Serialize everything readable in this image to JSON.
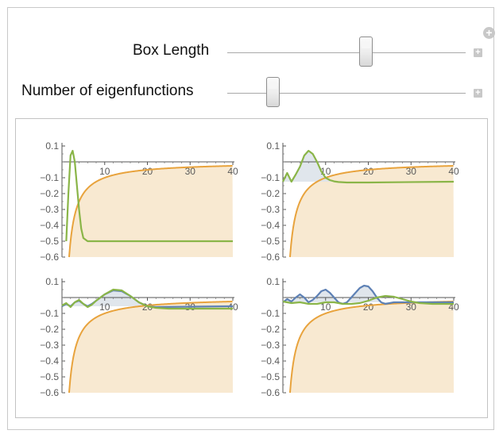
{
  "controls": {
    "box_length": {
      "label": "Box Length",
      "position": 0.58
    },
    "num_eigenfunctions": {
      "label": "Number of eigenfunctions",
      "position": 0.19
    }
  },
  "icons": {
    "add_panel": "plus-circle-icon",
    "expand": "plus-square-icon"
  },
  "colors": {
    "potential": "#e8a33d",
    "potential_fill": "#f8e9d1",
    "eigen_green": "#8ab548",
    "eigen_blue": "#5e81b5",
    "eigen_fill": "#dde3ea"
  },
  "chart_data": [
    {
      "type": "line",
      "title": "",
      "xlabel": "",
      "ylabel": "",
      "xlim": [
        0,
        40
      ],
      "ylim": [
        -0.6,
        0.1
      ],
      "xticks": [
        10,
        20,
        30,
        40
      ],
      "xtick_labels": [
        "10",
        "20",
        "30",
        "40"
      ],
      "yticks": [
        0.1,
        -0.1,
        -0.2,
        -0.3,
        -0.4,
        -0.5,
        -0.6
      ],
      "ytick_labels": [
        "0.1",
        "−0.1",
        "−0.2",
        "−0.3",
        "−0.4",
        "−0.5",
        "−0.6"
      ],
      "potential": "V(x) = -1/x",
      "series": [
        {
          "name": "eigenfunction 1",
          "color": "green",
          "fill": false,
          "x": [
            1,
            1.5,
            2,
            2.5,
            3,
            3.5,
            4,
            4.5,
            5,
            6,
            7,
            40
          ],
          "y": [
            -0.5,
            -0.2,
            0.04,
            0.07,
            0.0,
            -0.15,
            -0.3,
            -0.42,
            -0.48,
            -0.5,
            -0.5,
            -0.5
          ]
        }
      ]
    },
    {
      "type": "line",
      "title": "",
      "xlabel": "",
      "ylabel": "",
      "xlim": [
        0,
        40
      ],
      "ylim": [
        -0.6,
        0.1
      ],
      "xticks": [
        10,
        20,
        30,
        40
      ],
      "xtick_labels": [
        "10",
        "20",
        "30",
        "40"
      ],
      "yticks": [
        0.1,
        -0.1,
        -0.2,
        -0.3,
        -0.4,
        -0.5,
        -0.6
      ],
      "ytick_labels": [
        "0.1",
        "−0.1",
        "−0.2",
        "−0.3",
        "−0.4",
        "−0.5",
        "−0.6"
      ],
      "potential": "V(x) = -1/x",
      "series": [
        {
          "name": "eigenfunction 1",
          "color": "green",
          "fill": true,
          "baseline": -0.125,
          "x": [
            0,
            1,
            2,
            3,
            4,
            5,
            6,
            7,
            8,
            9,
            10,
            11,
            12,
            13,
            15,
            20,
            40
          ],
          "y": [
            -0.125,
            -0.07,
            -0.125,
            -0.08,
            -0.03,
            0.04,
            0.07,
            0.05,
            0.0,
            -0.06,
            -0.1,
            -0.115,
            -0.123,
            -0.127,
            -0.13,
            -0.13,
            -0.125
          ]
        }
      ]
    },
    {
      "type": "line",
      "title": "",
      "xlabel": "",
      "ylabel": "",
      "xlim": [
        0,
        40
      ],
      "ylim": [
        -0.6,
        0.1
      ],
      "xticks": [
        10,
        20,
        30,
        40
      ],
      "xtick_labels": [
        "10",
        "20",
        "30",
        "40"
      ],
      "yticks": [
        0.1,
        -0.1,
        -0.2,
        -0.3,
        -0.4,
        -0.5,
        -0.6
      ],
      "ytick_labels": [
        "0.1",
        "−0.1",
        "−0.2",
        "−0.3",
        "−0.4",
        "−0.5",
        "−0.6"
      ],
      "potential": "V(x) = -1/x",
      "series": [
        {
          "name": "eigenfunction 1",
          "color": "blue",
          "fill": true,
          "baseline": -0.055,
          "x": [
            0,
            1,
            2,
            3,
            4,
            5,
            6,
            7,
            8,
            10,
            12,
            14,
            16,
            18,
            20,
            22,
            40
          ],
          "y": [
            -0.055,
            -0.04,
            -0.055,
            -0.03,
            -0.02,
            -0.04,
            -0.055,
            -0.04,
            -0.02,
            0.02,
            0.045,
            0.04,
            0.01,
            -0.03,
            -0.055,
            -0.06,
            -0.055
          ]
        },
        {
          "name": "eigenfunction 2",
          "color": "green",
          "fill": false,
          "x": [
            0,
            1,
            2,
            3,
            4,
            5,
            6,
            7,
            8,
            10,
            12,
            14,
            16,
            18,
            20,
            22,
            25,
            40
          ],
          "y": [
            -0.05,
            -0.035,
            -0.06,
            -0.03,
            -0.015,
            -0.04,
            -0.06,
            -0.045,
            -0.02,
            0.02,
            0.05,
            0.045,
            0.01,
            -0.03,
            -0.055,
            -0.065,
            -0.07,
            -0.07
          ]
        }
      ]
    },
    {
      "type": "line",
      "title": "",
      "xlabel": "",
      "ylabel": "",
      "xlim": [
        0,
        40
      ],
      "ylim": [
        -0.6,
        0.1
      ],
      "xticks": [
        10,
        20,
        30,
        40
      ],
      "xtick_labels": [
        "10",
        "20",
        "30",
        "40"
      ],
      "yticks": [
        0.1,
        -0.1,
        -0.2,
        -0.3,
        -0.4,
        -0.5,
        -0.6
      ],
      "ytick_labels": [
        "0.1",
        "−0.1",
        "−0.2",
        "−0.3",
        "−0.4",
        "−0.5",
        "−0.6"
      ],
      "potential": "V(x) = -1/x",
      "series": [
        {
          "name": "eigenfunction 1",
          "color": "blue",
          "fill": true,
          "baseline": -0.03,
          "x": [
            0,
            1,
            2,
            3,
            4,
            5,
            6,
            7,
            8,
            9,
            10,
            11,
            12,
            13,
            14,
            15,
            16,
            17,
            18,
            19,
            20,
            21,
            22,
            23,
            24,
            26,
            40
          ],
          "y": [
            -0.03,
            -0.01,
            -0.025,
            0.0,
            0.02,
            0.0,
            -0.03,
            -0.015,
            0.01,
            0.04,
            0.05,
            0.03,
            0.0,
            -0.03,
            -0.04,
            -0.03,
            0.0,
            0.03,
            0.06,
            0.075,
            0.07,
            0.04,
            0.0,
            -0.03,
            -0.04,
            -0.03,
            -0.03
          ]
        },
        {
          "name": "eigenfunction 2",
          "color": "green",
          "fill": false,
          "x": [
            0,
            2,
            4,
            6,
            8,
            10,
            12,
            14,
            16,
            18,
            20,
            22,
            24,
            26,
            28,
            30,
            32,
            35,
            40
          ],
          "y": [
            -0.025,
            -0.035,
            -0.03,
            -0.04,
            -0.04,
            -0.03,
            -0.03,
            -0.04,
            -0.04,
            -0.035,
            -0.02,
            0.0,
            0.01,
            0.005,
            -0.01,
            -0.025,
            -0.035,
            -0.04,
            -0.04
          ]
        }
      ]
    }
  ]
}
